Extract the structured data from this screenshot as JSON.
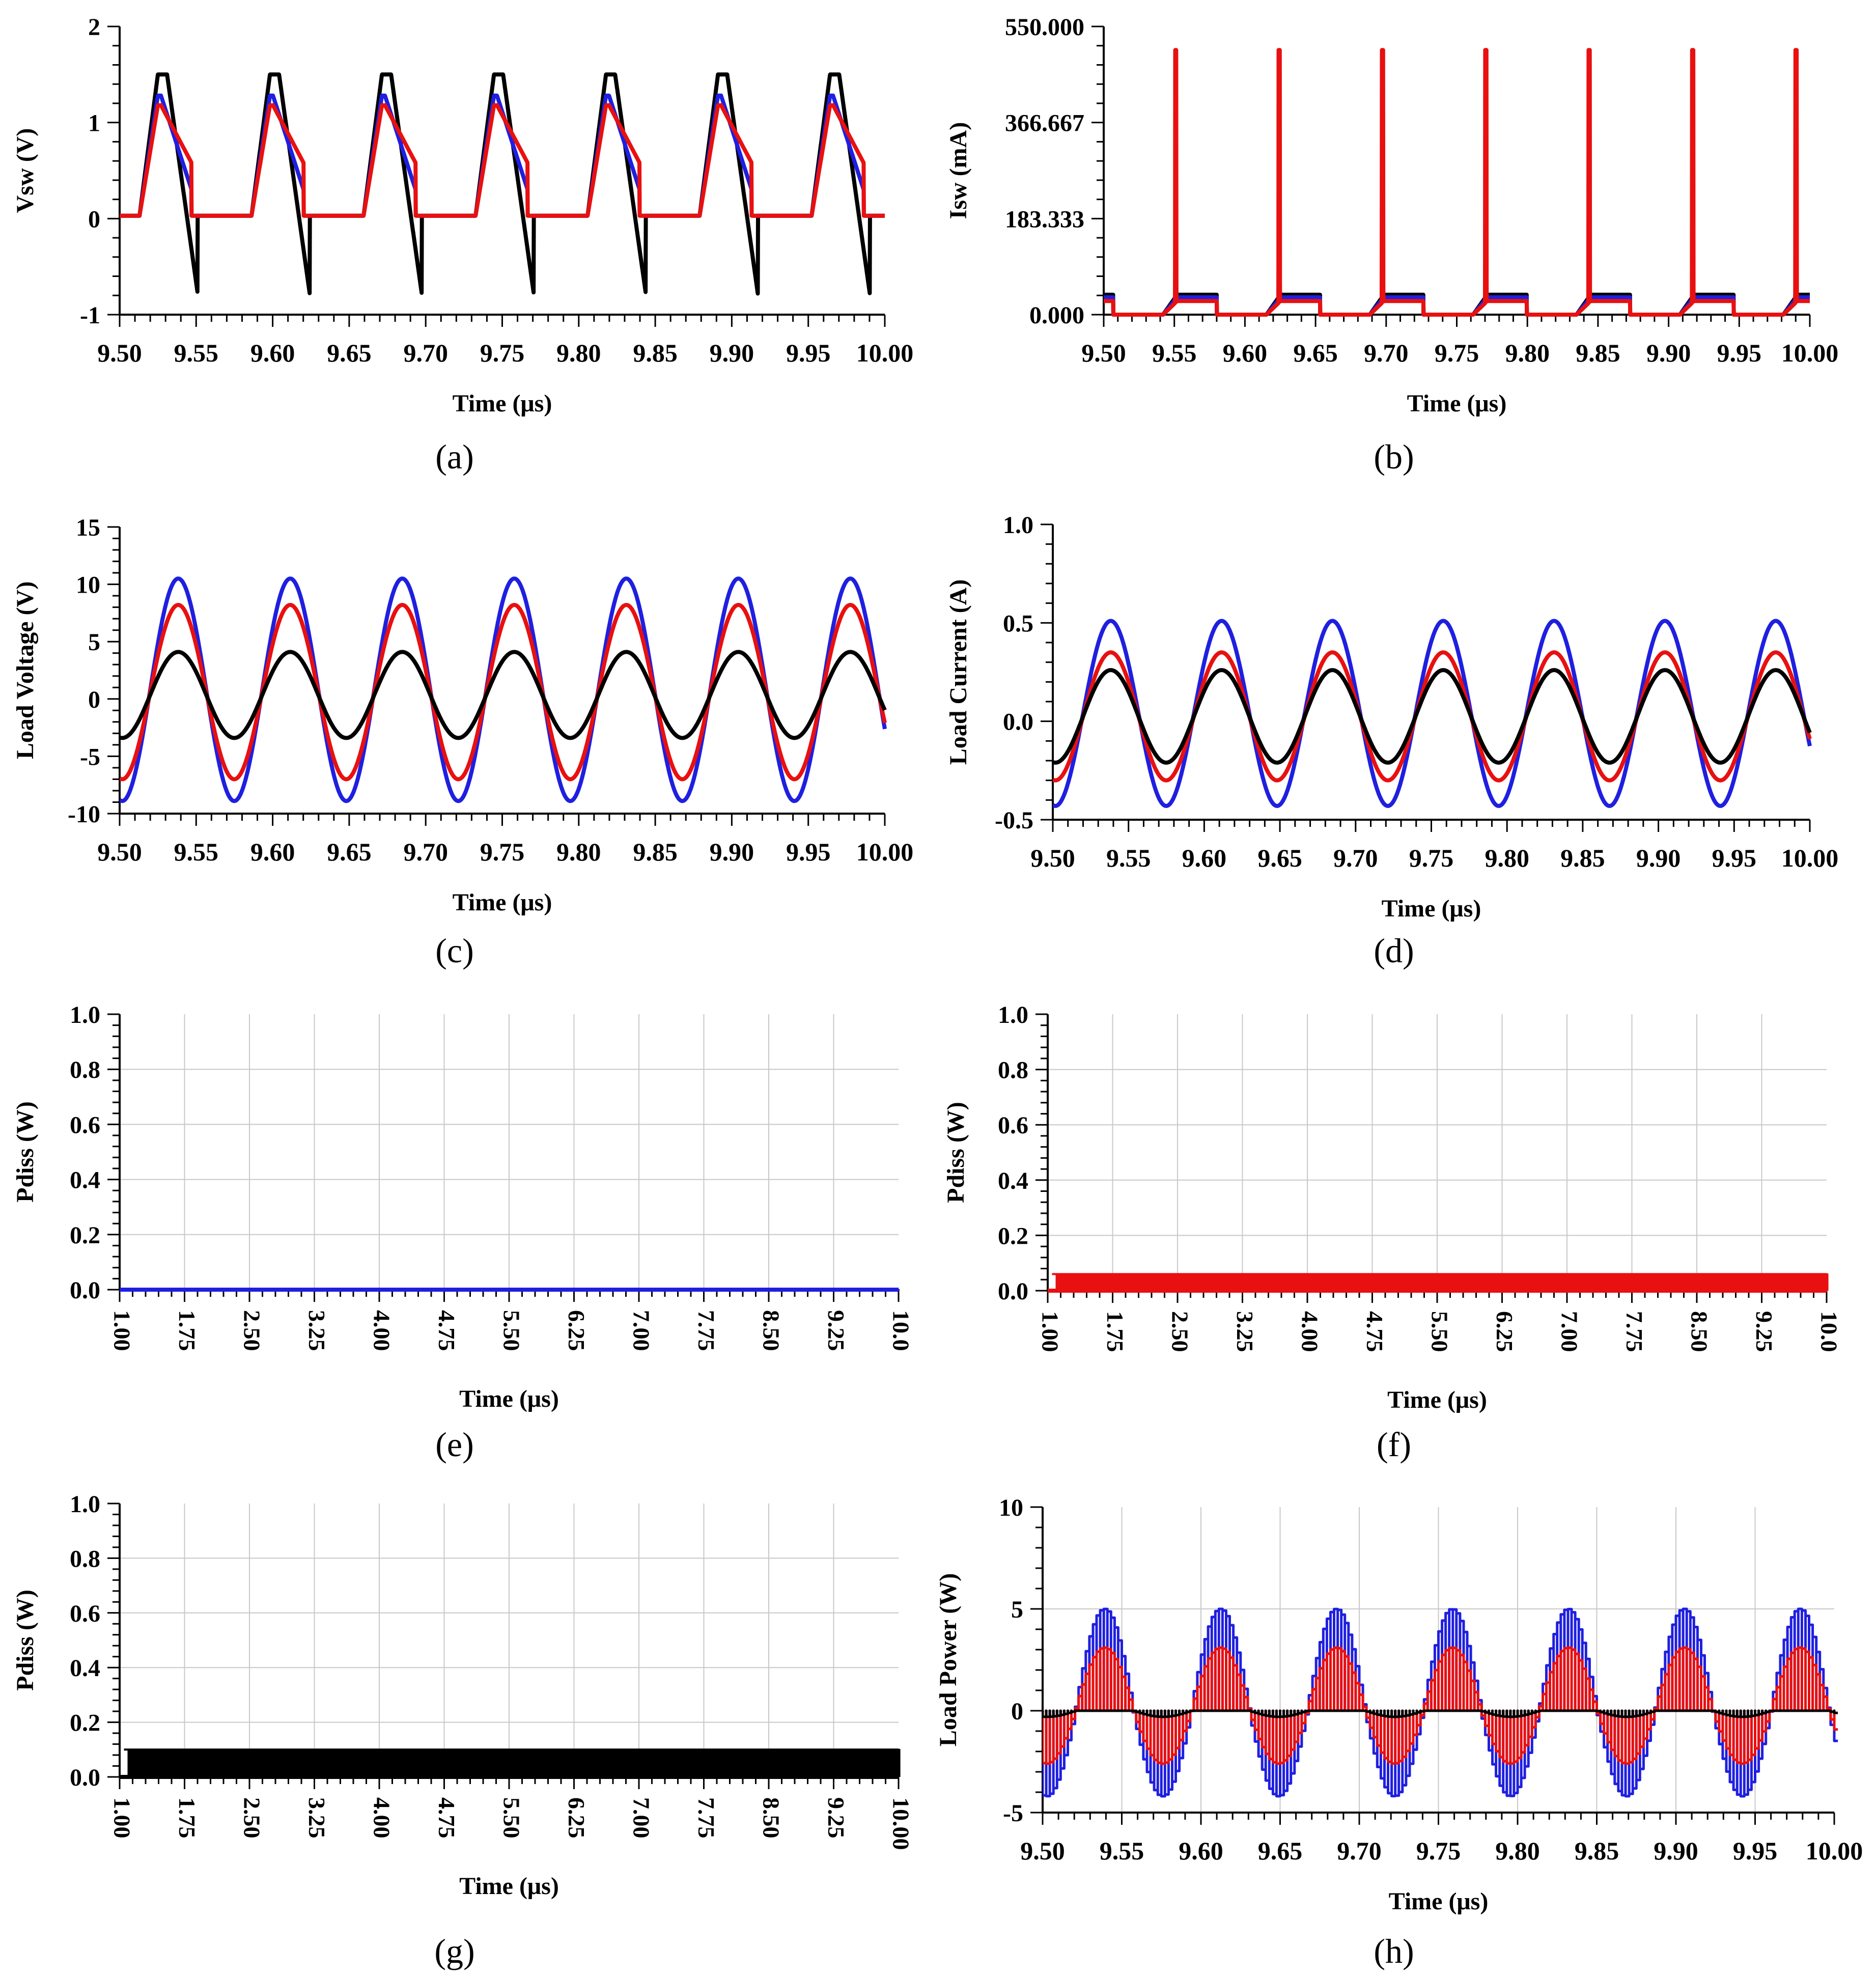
{
  "chart_data": [
    {
      "panel": "a",
      "caption": "(a)",
      "type": "line",
      "xlabel": "Time (μs)",
      "ylabel": "Vsw (V)",
      "xlim": [
        9.5,
        10.0
      ],
      "ylim": [
        -1,
        2
      ],
      "xticks": [
        "9.50",
        "9.55",
        "9.60",
        "9.65",
        "9.70",
        "9.75",
        "9.80",
        "9.85",
        "9.90",
        "9.95",
        "10.00"
      ],
      "yticks": [
        "-1",
        "0",
        "1",
        "2"
      ],
      "grid": false,
      "waveform": "switch",
      "series": [
        {
          "name": "black",
          "color": "#000000",
          "base": 0.03,
          "peak": 1.5,
          "trough": -0.78,
          "lead": 0.0
        },
        {
          "name": "blue",
          "color": "#1f1fe0",
          "base": 0.03,
          "peak": 1.28,
          "trough": 0.3,
          "lead": 0.0
        },
        {
          "name": "red",
          "color": "#e81010",
          "base": 0.03,
          "peak": 1.18,
          "trough": 0.58,
          "lead": 0.0
        }
      ]
    },
    {
      "panel": "b",
      "caption": "(b)",
      "type": "line",
      "xlabel": "Time (μs)",
      "ylabel": "Isw (mA)",
      "xlim": [
        9.5,
        10.0
      ],
      "ylim": [
        0,
        550
      ],
      "xticks": [
        "9.50",
        "9.55",
        "9.60",
        "9.65",
        "9.70",
        "9.75",
        "9.80",
        "9.85",
        "9.90",
        "9.95",
        "10.00"
      ],
      "yticks": [
        "0.000",
        "183.333",
        "366.667",
        "550.000"
      ],
      "grid": false,
      "waveform": "current",
      "series": [
        {
          "name": "black",
          "color": "#000000",
          "plateau": 38,
          "spike": 0
        },
        {
          "name": "blue",
          "color": "#1f1fe0",
          "plateau": 33,
          "spike": 80
        },
        {
          "name": "red",
          "color": "#e81010",
          "plateau": 26,
          "spike": 505
        }
      ]
    },
    {
      "panel": "c",
      "caption": "(c)",
      "type": "line",
      "xlabel": "Time (μs)",
      "ylabel": "Load Voltage (V)",
      "xlim": [
        9.5,
        10.0
      ],
      "ylim": [
        -10,
        15
      ],
      "xticks": [
        "9.50",
        "9.55",
        "9.60",
        "9.65",
        "9.70",
        "9.75",
        "9.80",
        "9.85",
        "9.90",
        "9.95",
        "10.00"
      ],
      "yticks": [
        "-10",
        "-5",
        "0",
        "5",
        "10",
        "15"
      ],
      "grid": false,
      "waveform": "sine",
      "period": 0.0732,
      "phase_zero": 9.52,
      "series": [
        {
          "name": "blue",
          "color": "#1f1fe0",
          "max": 10.5,
          "min": -8.9
        },
        {
          "name": "red",
          "color": "#e81010",
          "max": 8.2,
          "min": -7.0
        },
        {
          "name": "black",
          "color": "#000000",
          "max": 4.1,
          "min": -3.4
        }
      ]
    },
    {
      "panel": "d",
      "caption": "(d)",
      "type": "line",
      "xlabel": "Time (μs)",
      "ylabel": "Load Current (A)",
      "xlim": [
        9.5,
        10.0
      ],
      "ylim": [
        -0.5,
        1.0
      ],
      "xticks": [
        "9.50",
        "9.55",
        "9.60",
        "9.65",
        "9.70",
        "9.75",
        "9.80",
        "9.85",
        "9.90",
        "9.95",
        "10.00"
      ],
      "yticks": [
        "-0.5",
        "0.0",
        "0.5",
        "1.0"
      ],
      "grid": false,
      "waveform": "sine",
      "period": 0.0732,
      "phase_zero": 9.52,
      "series": [
        {
          "name": "blue",
          "color": "#1f1fe0",
          "max": 0.51,
          "min": -0.43
        },
        {
          "name": "red",
          "color": "#e81010",
          "max": 0.35,
          "min": -0.3
        },
        {
          "name": "black",
          "color": "#000000",
          "max": 0.26,
          "min": -0.21
        }
      ]
    },
    {
      "panel": "e",
      "caption": "(e)",
      "type": "line",
      "xlabel": "Time (μs)",
      "ylabel": "Pdiss (W)",
      "xlim": [
        1.0,
        10.0
      ],
      "ylim": [
        0.0,
        1.0
      ],
      "xticks": [
        "1.00",
        "1.75",
        "2.50",
        "3.25",
        "4.00",
        "4.75",
        "5.50",
        "6.25",
        "7.00",
        "7.75",
        "8.50",
        "9.25",
        "10.0"
      ],
      "yticks": [
        "0.0",
        "0.2",
        "0.4",
        "0.6",
        "0.8",
        "1.0"
      ],
      "grid": true,
      "waveform": "band",
      "series": [
        {
          "name": "blue",
          "color": "#1f1fe0",
          "level": 0.0
        }
      ]
    },
    {
      "panel": "f",
      "caption": "(f)",
      "type": "line",
      "xlabel": "Time (μs)",
      "ylabel": "Pdiss (W)",
      "xlim": [
        1.0,
        10.0
      ],
      "ylim": [
        0.0,
        1.0
      ],
      "xticks": [
        "1.00",
        "1.75",
        "2.50",
        "3.25",
        "4.00",
        "4.75",
        "5.50",
        "6.25",
        "7.00",
        "7.75",
        "8.50",
        "9.25",
        "10.0"
      ],
      "yticks": [
        "0.0",
        "0.2",
        "0.4",
        "0.6",
        "0.8",
        "1.0"
      ],
      "grid": true,
      "waveform": "band",
      "series": [
        {
          "name": "red",
          "color": "#e81010",
          "level": 0.06
        }
      ]
    },
    {
      "panel": "g",
      "caption": "(g)",
      "type": "line",
      "xlabel": "Time (μs)",
      "ylabel": "Pdiss (W)",
      "xlim": [
        1.0,
        10.0
      ],
      "ylim": [
        0.0,
        1.0
      ],
      "xticks": [
        "1.00",
        "1.75",
        "2.50",
        "3.25",
        "4.00",
        "4.75",
        "5.50",
        "6.25",
        "7.00",
        "7.75",
        "8.50",
        "9.25",
        "10.00"
      ],
      "yticks": [
        "0.0",
        "0.2",
        "0.4",
        "0.6",
        "0.8",
        "1.0"
      ],
      "grid": true,
      "waveform": "band",
      "series": [
        {
          "name": "black",
          "color": "#000000",
          "level": 0.1
        }
      ]
    },
    {
      "panel": "h",
      "caption": "(h)",
      "type": "line",
      "xlabel": "Time (μs)",
      "ylabel": "Load Power (W)",
      "xlim": [
        9.5,
        10.0
      ],
      "ylim": [
        -5,
        10
      ],
      "xticks": [
        "9.50",
        "9.55",
        "9.60",
        "9.65",
        "9.70",
        "9.75",
        "9.80",
        "9.85",
        "9.90",
        "9.95",
        "10.00"
      ],
      "yticks": [
        "-5",
        "0",
        "5",
        "10"
      ],
      "grid": true,
      "waveform": "power",
      "period": 0.0732,
      "phase_zero": 9.52,
      "series": [
        {
          "name": "blue",
          "color": "#1f1fe0",
          "max": 5.0,
          "min": -4.2
        },
        {
          "name": "red",
          "color": "#e81010",
          "max": 3.1,
          "min": -2.6
        },
        {
          "name": "black",
          "color": "#000000",
          "max": 0.0,
          "min": -0.3
        }
      ]
    }
  ]
}
